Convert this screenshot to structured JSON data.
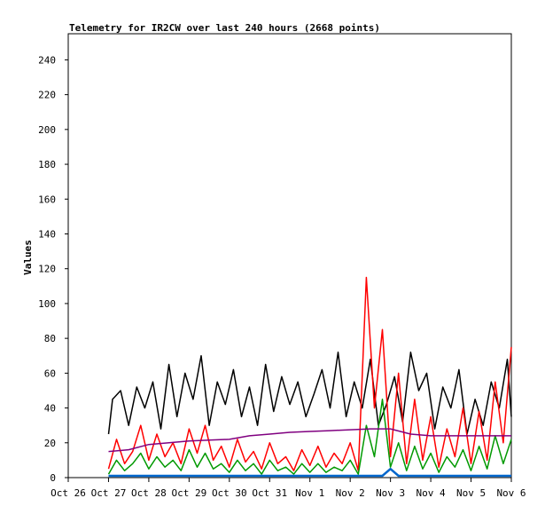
{
  "chart_data": {
    "type": "line",
    "title": "Telemetry for IR2CW over last 240 hours (2668 points)",
    "xlabel": "",
    "ylabel": "Values",
    "ylim": [
      0,
      255
    ],
    "yticks": [
      0,
      20,
      40,
      60,
      80,
      100,
      120,
      140,
      160,
      180,
      200,
      220,
      240
    ],
    "xticks": [
      "Oct 26",
      "Oct 27",
      "Oct 28",
      "Oct 29",
      "Oct 30",
      "Oct 31",
      "Nov 1",
      "Nov 2",
      "Nov 3",
      "Nov 4",
      "Nov 5",
      "Nov 6"
    ],
    "x_domain_days": [
      0,
      11
    ],
    "grid": false,
    "series": [
      {
        "color": "#000000",
        "x": [
          1.0,
          1.1,
          1.3,
          1.5,
          1.7,
          1.9,
          2.1,
          2.3,
          2.5,
          2.7,
          2.9,
          3.1,
          3.3,
          3.5,
          3.7,
          3.9,
          4.1,
          4.3,
          4.5,
          4.7,
          4.9,
          5.1,
          5.3,
          5.5,
          5.7,
          5.9,
          6.1,
          6.3,
          6.5,
          6.7,
          6.9,
          7.1,
          7.3,
          7.5,
          7.7,
          7.9,
          8.1,
          8.3,
          8.5,
          8.7,
          8.9,
          9.1,
          9.3,
          9.5,
          9.7,
          9.9,
          10.1,
          10.3,
          10.5,
          10.7,
          10.9,
          11.0
        ],
        "y": [
          25,
          45,
          50,
          30,
          52,
          40,
          55,
          28,
          65,
          35,
          60,
          45,
          70,
          30,
          55,
          42,
          62,
          35,
          52,
          30,
          65,
          38,
          58,
          42,
          55,
          35,
          48,
          62,
          40,
          72,
          35,
          55,
          40,
          68,
          30,
          42,
          58,
          32,
          72,
          50,
          60,
          28,
          52,
          40,
          62,
          25,
          45,
          30,
          55,
          40,
          68,
          35
        ]
      },
      {
        "color": "#ff0000",
        "x": [
          1.0,
          1.2,
          1.4,
          1.6,
          1.8,
          2.0,
          2.2,
          2.4,
          2.6,
          2.8,
          3.0,
          3.2,
          3.4,
          3.6,
          3.8,
          4.0,
          4.2,
          4.4,
          4.6,
          4.8,
          5.0,
          5.2,
          5.4,
          5.6,
          5.8,
          6.0,
          6.2,
          6.4,
          6.6,
          6.8,
          7.0,
          7.2,
          7.4,
          7.6,
          7.8,
          8.0,
          8.2,
          8.4,
          8.6,
          8.8,
          9.0,
          9.2,
          9.4,
          9.6,
          9.8,
          10.0,
          10.2,
          10.4,
          10.6,
          10.8,
          11.0
        ],
        "y": [
          5,
          22,
          8,
          15,
          30,
          10,
          25,
          12,
          20,
          8,
          28,
          14,
          30,
          10,
          18,
          6,
          22,
          9,
          15,
          5,
          20,
          8,
          12,
          4,
          16,
          7,
          18,
          6,
          14,
          8,
          20,
          4,
          115,
          40,
          85,
          12,
          60,
          8,
          45,
          10,
          35,
          6,
          28,
          12,
          40,
          8,
          38,
          10,
          55,
          20,
          75
        ]
      },
      {
        "color": "#009900",
        "x": [
          1.0,
          1.2,
          1.4,
          1.6,
          1.8,
          2.0,
          2.2,
          2.4,
          2.6,
          2.8,
          3.0,
          3.2,
          3.4,
          3.6,
          3.8,
          4.0,
          4.2,
          4.4,
          4.6,
          4.8,
          5.0,
          5.2,
          5.4,
          5.6,
          5.8,
          6.0,
          6.2,
          6.4,
          6.6,
          6.8,
          7.0,
          7.2,
          7.4,
          7.6,
          7.8,
          8.0,
          8.2,
          8.4,
          8.6,
          8.8,
          9.0,
          9.2,
          9.4,
          9.6,
          9.8,
          10.0,
          10.2,
          10.4,
          10.6,
          10.8,
          11.0
        ],
        "y": [
          2,
          10,
          4,
          8,
          14,
          5,
          12,
          6,
          10,
          4,
          16,
          6,
          14,
          5,
          8,
          3,
          10,
          4,
          8,
          2,
          10,
          4,
          6,
          2,
          8,
          3,
          8,
          3,
          6,
          4,
          10,
          2,
          30,
          12,
          45,
          6,
          20,
          4,
          18,
          5,
          14,
          3,
          12,
          6,
          16,
          4,
          18,
          5,
          24,
          8,
          22
        ]
      },
      {
        "color": "#800080",
        "x": [
          1.0,
          1.5,
          2.0,
          2.5,
          3.0,
          3.5,
          4.0,
          4.5,
          5.0,
          5.5,
          6.0,
          6.5,
          7.0,
          7.5,
          8.0,
          8.5,
          9.0,
          9.5,
          10.0,
          10.5,
          11.0
        ],
        "y": [
          15,
          16,
          19,
          20,
          21,
          21.5,
          22,
          24,
          25,
          26,
          26.5,
          27,
          27.5,
          28,
          28,
          25,
          24,
          24,
          24,
          24,
          24
        ]
      },
      {
        "color": "#0066cc",
        "x": [
          1.0,
          2.0,
          3.0,
          4.0,
          5.0,
          6.0,
          7.0,
          7.8,
          8.0,
          8.2,
          9.0,
          10.0,
          11.0
        ],
        "y": [
          1,
          1,
          1,
          1,
          1,
          1,
          1,
          1,
          5,
          1,
          1,
          1,
          1
        ]
      }
    ]
  }
}
